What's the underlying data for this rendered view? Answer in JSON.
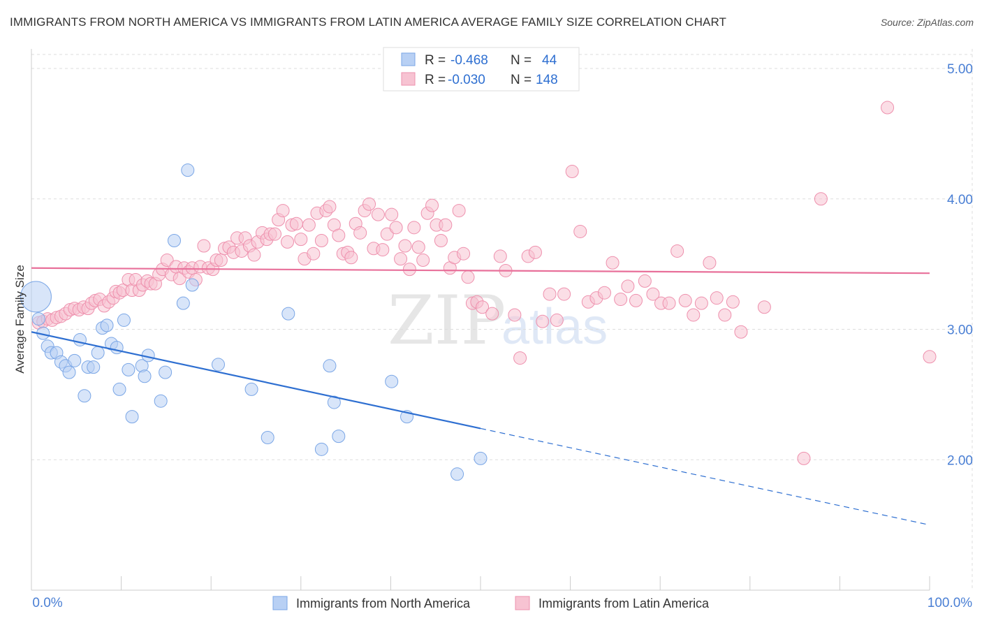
{
  "header": {
    "title": "IMMIGRANTS FROM NORTH AMERICA VS IMMIGRANTS FROM LATIN AMERICA AVERAGE FAMILY SIZE CORRELATION CHART",
    "source": "Source: ZipAtlas.com"
  },
  "watermark": {
    "zip": "ZIP",
    "atlas": "atlas"
  },
  "stats_legend": {
    "row1": {
      "r_label": "R =",
      "r_value": "-0.468",
      "n_label": "N =",
      "n_value": "44"
    },
    "row2": {
      "r_label": "R =",
      "r_value": "-0.030",
      "n_label": "N =",
      "n_value": "148"
    }
  },
  "bottom_legend": {
    "series1": "Immigrants from North America",
    "series2": "Immigrants from Latin America"
  },
  "colors": {
    "blue_fill": "#b8d0f4",
    "blue_stroke": "#7aa6e6",
    "blue_line": "#2e6fd1",
    "pink_fill": "#f7c3d2",
    "pink_stroke": "#ee90ad",
    "pink_line": "#e8709a",
    "tick": "#4a7fd4",
    "grid": "#dddddd"
  },
  "chart_data": {
    "type": "scatter",
    "title": "IMMIGRANTS FROM NORTH AMERICA VS IMMIGRANTS FROM LATIN AMERICA AVERAGE FAMILY SIZE CORRELATION CHART",
    "xlabel": "",
    "ylabel": "Average Family Size",
    "xlim": [
      0,
      100
    ],
    "ylim": [
      1.0,
      5.15
    ],
    "x_tick_labels": {
      "left": "0.0%",
      "right": "100.0%"
    },
    "y_ticks": [
      2.0,
      3.0,
      4.0,
      5.0
    ],
    "y_tick_labels": [
      "2.00",
      "3.00",
      "4.00",
      "5.00"
    ],
    "series": [
      {
        "name": "Immigrants from North America",
        "R": -0.468,
        "N": 44,
        "trend": {
          "x0": 0,
          "y0": 2.98,
          "x1": 50,
          "y1": 2.24,
          "dash_to_x": 100,
          "dash_to_y": 1.5
        },
        "points": [
          [
            0.5,
            3.25,
            3
          ],
          [
            0.8,
            3.08,
            1
          ],
          [
            1.3,
            2.97,
            1
          ],
          [
            1.8,
            2.87,
            1
          ],
          [
            2.2,
            2.82,
            1
          ],
          [
            2.8,
            2.82,
            1
          ],
          [
            3.3,
            2.75,
            1
          ],
          [
            3.8,
            2.72,
            1
          ],
          [
            4.2,
            2.67,
            1
          ],
          [
            4.8,
            2.76,
            1
          ],
          [
            5.4,
            2.92,
            1
          ],
          [
            5.9,
            2.49,
            1
          ],
          [
            6.3,
            2.71,
            1
          ],
          [
            6.9,
            2.71,
            1
          ],
          [
            7.4,
            2.82,
            1
          ],
          [
            7.9,
            3.01,
            1
          ],
          [
            8.4,
            3.03,
            1
          ],
          [
            8.9,
            2.89,
            1
          ],
          [
            9.5,
            2.86,
            1
          ],
          [
            9.8,
            2.54,
            1
          ],
          [
            10.3,
            3.07,
            1
          ],
          [
            10.8,
            2.69,
            1
          ],
          [
            11.2,
            2.33,
            1
          ],
          [
            12.3,
            2.72,
            1
          ],
          [
            12.6,
            2.64,
            1
          ],
          [
            13.0,
            2.8,
            1
          ],
          [
            14.4,
            2.45,
            1
          ],
          [
            14.9,
            2.67,
            1
          ],
          [
            15.9,
            3.68,
            1
          ],
          [
            16.9,
            3.2,
            1
          ],
          [
            17.4,
            4.22,
            1
          ],
          [
            17.9,
            3.34,
            1
          ],
          [
            20.8,
            2.73,
            1
          ],
          [
            24.5,
            2.54,
            1
          ],
          [
            26.3,
            2.17,
            1
          ],
          [
            28.6,
            3.12,
            1
          ],
          [
            32.3,
            2.08,
            1
          ],
          [
            33.2,
            2.72,
            1
          ],
          [
            33.7,
            2.44,
            1
          ],
          [
            34.2,
            2.18,
            1
          ],
          [
            40.1,
            2.6,
            1
          ],
          [
            41.8,
            2.33,
            1
          ],
          [
            47.4,
            1.89,
            1
          ],
          [
            50.0,
            2.01,
            1
          ]
        ]
      },
      {
        "name": "Immigrants from Latin America",
        "R": -0.03,
        "N": 148,
        "trend": {
          "x0": 0,
          "y0": 3.47,
          "x1": 100,
          "y1": 3.43
        },
        "points": [
          [
            0.8,
            3.05
          ],
          [
            1.3,
            3.06
          ],
          [
            1.8,
            3.08
          ],
          [
            2.3,
            3.07
          ],
          [
            2.8,
            3.09
          ],
          [
            3.3,
            3.1
          ],
          [
            3.8,
            3.12
          ],
          [
            4.3,
            3.15
          ],
          [
            4.8,
            3.16
          ],
          [
            5.3,
            3.15
          ],
          [
            5.8,
            3.17
          ],
          [
            6.3,
            3.16
          ],
          [
            6.7,
            3.2
          ],
          [
            7.1,
            3.22
          ],
          [
            7.6,
            3.23
          ],
          [
            8.1,
            3.18
          ],
          [
            8.6,
            3.21
          ],
          [
            9.1,
            3.24
          ],
          [
            9.4,
            3.29
          ],
          [
            9.8,
            3.28
          ],
          [
            10.2,
            3.3
          ],
          [
            10.8,
            3.38
          ],
          [
            11.2,
            3.3
          ],
          [
            11.6,
            3.38
          ],
          [
            12.0,
            3.3
          ],
          [
            12.4,
            3.34
          ],
          [
            12.9,
            3.37
          ],
          [
            13.3,
            3.35
          ],
          [
            13.8,
            3.35
          ],
          [
            14.2,
            3.42
          ],
          [
            14.6,
            3.46
          ],
          [
            15.1,
            3.53
          ],
          [
            15.6,
            3.42
          ],
          [
            16.1,
            3.48
          ],
          [
            16.5,
            3.39
          ],
          [
            17.0,
            3.47
          ],
          [
            17.5,
            3.44
          ],
          [
            17.9,
            3.47
          ],
          [
            18.3,
            3.38
          ],
          [
            18.8,
            3.48
          ],
          [
            19.2,
            3.64
          ],
          [
            19.7,
            3.47
          ],
          [
            20.2,
            3.46
          ],
          [
            20.6,
            3.53
          ],
          [
            21.1,
            3.53
          ],
          [
            21.5,
            3.62
          ],
          [
            22.0,
            3.63
          ],
          [
            22.5,
            3.59
          ],
          [
            22.9,
            3.7
          ],
          [
            23.4,
            3.6
          ],
          [
            23.8,
            3.7
          ],
          [
            24.3,
            3.64
          ],
          [
            24.8,
            3.57
          ],
          [
            25.2,
            3.67
          ],
          [
            25.7,
            3.74
          ],
          [
            26.2,
            3.69
          ],
          [
            26.6,
            3.73
          ],
          [
            27.1,
            3.73
          ],
          [
            27.5,
            3.84
          ],
          [
            28.0,
            3.91
          ],
          [
            28.5,
            3.67
          ],
          [
            29.0,
            3.8
          ],
          [
            29.5,
            3.81
          ],
          [
            30.0,
            3.69
          ],
          [
            30.4,
            3.54
          ],
          [
            30.9,
            3.8
          ],
          [
            31.4,
            3.58
          ],
          [
            31.8,
            3.89
          ],
          [
            32.3,
            3.68
          ],
          [
            32.8,
            3.91
          ],
          [
            33.2,
            3.94
          ],
          [
            33.7,
            3.8
          ],
          [
            34.2,
            3.72
          ],
          [
            34.7,
            3.58
          ],
          [
            35.2,
            3.59
          ],
          [
            35.6,
            3.55
          ],
          [
            36.1,
            3.81
          ],
          [
            36.6,
            3.74
          ],
          [
            37.1,
            3.91
          ],
          [
            37.6,
            3.96
          ],
          [
            38.1,
            3.62
          ],
          [
            38.6,
            3.88
          ],
          [
            39.1,
            3.61
          ],
          [
            39.6,
            3.73
          ],
          [
            40.1,
            3.88
          ],
          [
            40.6,
            3.78
          ],
          [
            41.1,
            3.54
          ],
          [
            41.6,
            3.64
          ],
          [
            42.1,
            3.46
          ],
          [
            42.6,
            3.78
          ],
          [
            43.1,
            3.63
          ],
          [
            43.6,
            3.53
          ],
          [
            44.1,
            3.89
          ],
          [
            44.6,
            3.95
          ],
          [
            45.1,
            3.8
          ],
          [
            45.6,
            3.68
          ],
          [
            46.1,
            3.8
          ],
          [
            46.6,
            3.47
          ],
          [
            47.1,
            3.55
          ],
          [
            47.6,
            3.91
          ],
          [
            48.1,
            3.58
          ],
          [
            48.6,
            3.4
          ],
          [
            49.1,
            3.2
          ],
          [
            49.6,
            3.21
          ],
          [
            50.2,
            3.17
          ],
          [
            51.3,
            3.12
          ],
          [
            52.2,
            3.56
          ],
          [
            52.8,
            3.45
          ],
          [
            53.8,
            3.11
          ],
          [
            54.4,
            2.78
          ],
          [
            55.3,
            3.56
          ],
          [
            56.1,
            3.59
          ],
          [
            56.9,
            3.06
          ],
          [
            57.7,
            3.27
          ],
          [
            58.5,
            3.07
          ],
          [
            59.3,
            3.27
          ],
          [
            60.2,
            4.21
          ],
          [
            61.1,
            3.75
          ],
          [
            62.0,
            3.21
          ],
          [
            62.9,
            3.24
          ],
          [
            63.8,
            3.28
          ],
          [
            64.7,
            3.51
          ],
          [
            65.6,
            3.23
          ],
          [
            66.4,
            3.33
          ],
          [
            67.3,
            3.22
          ],
          [
            68.3,
            3.37
          ],
          [
            69.2,
            3.27
          ],
          [
            70.1,
            3.2
          ],
          [
            71.0,
            3.2
          ],
          [
            71.9,
            3.6
          ],
          [
            72.8,
            3.22
          ],
          [
            73.7,
            3.11
          ],
          [
            74.6,
            3.2
          ],
          [
            75.5,
            3.51
          ],
          [
            76.3,
            3.24
          ],
          [
            77.2,
            3.11
          ],
          [
            78.1,
            3.21
          ],
          [
            79.0,
            2.98
          ],
          [
            81.6,
            3.17
          ],
          [
            86.0,
            2.01
          ],
          [
            87.9,
            4.0
          ],
          [
            95.3,
            4.7
          ],
          [
            100.0,
            2.79
          ]
        ]
      }
    ]
  }
}
